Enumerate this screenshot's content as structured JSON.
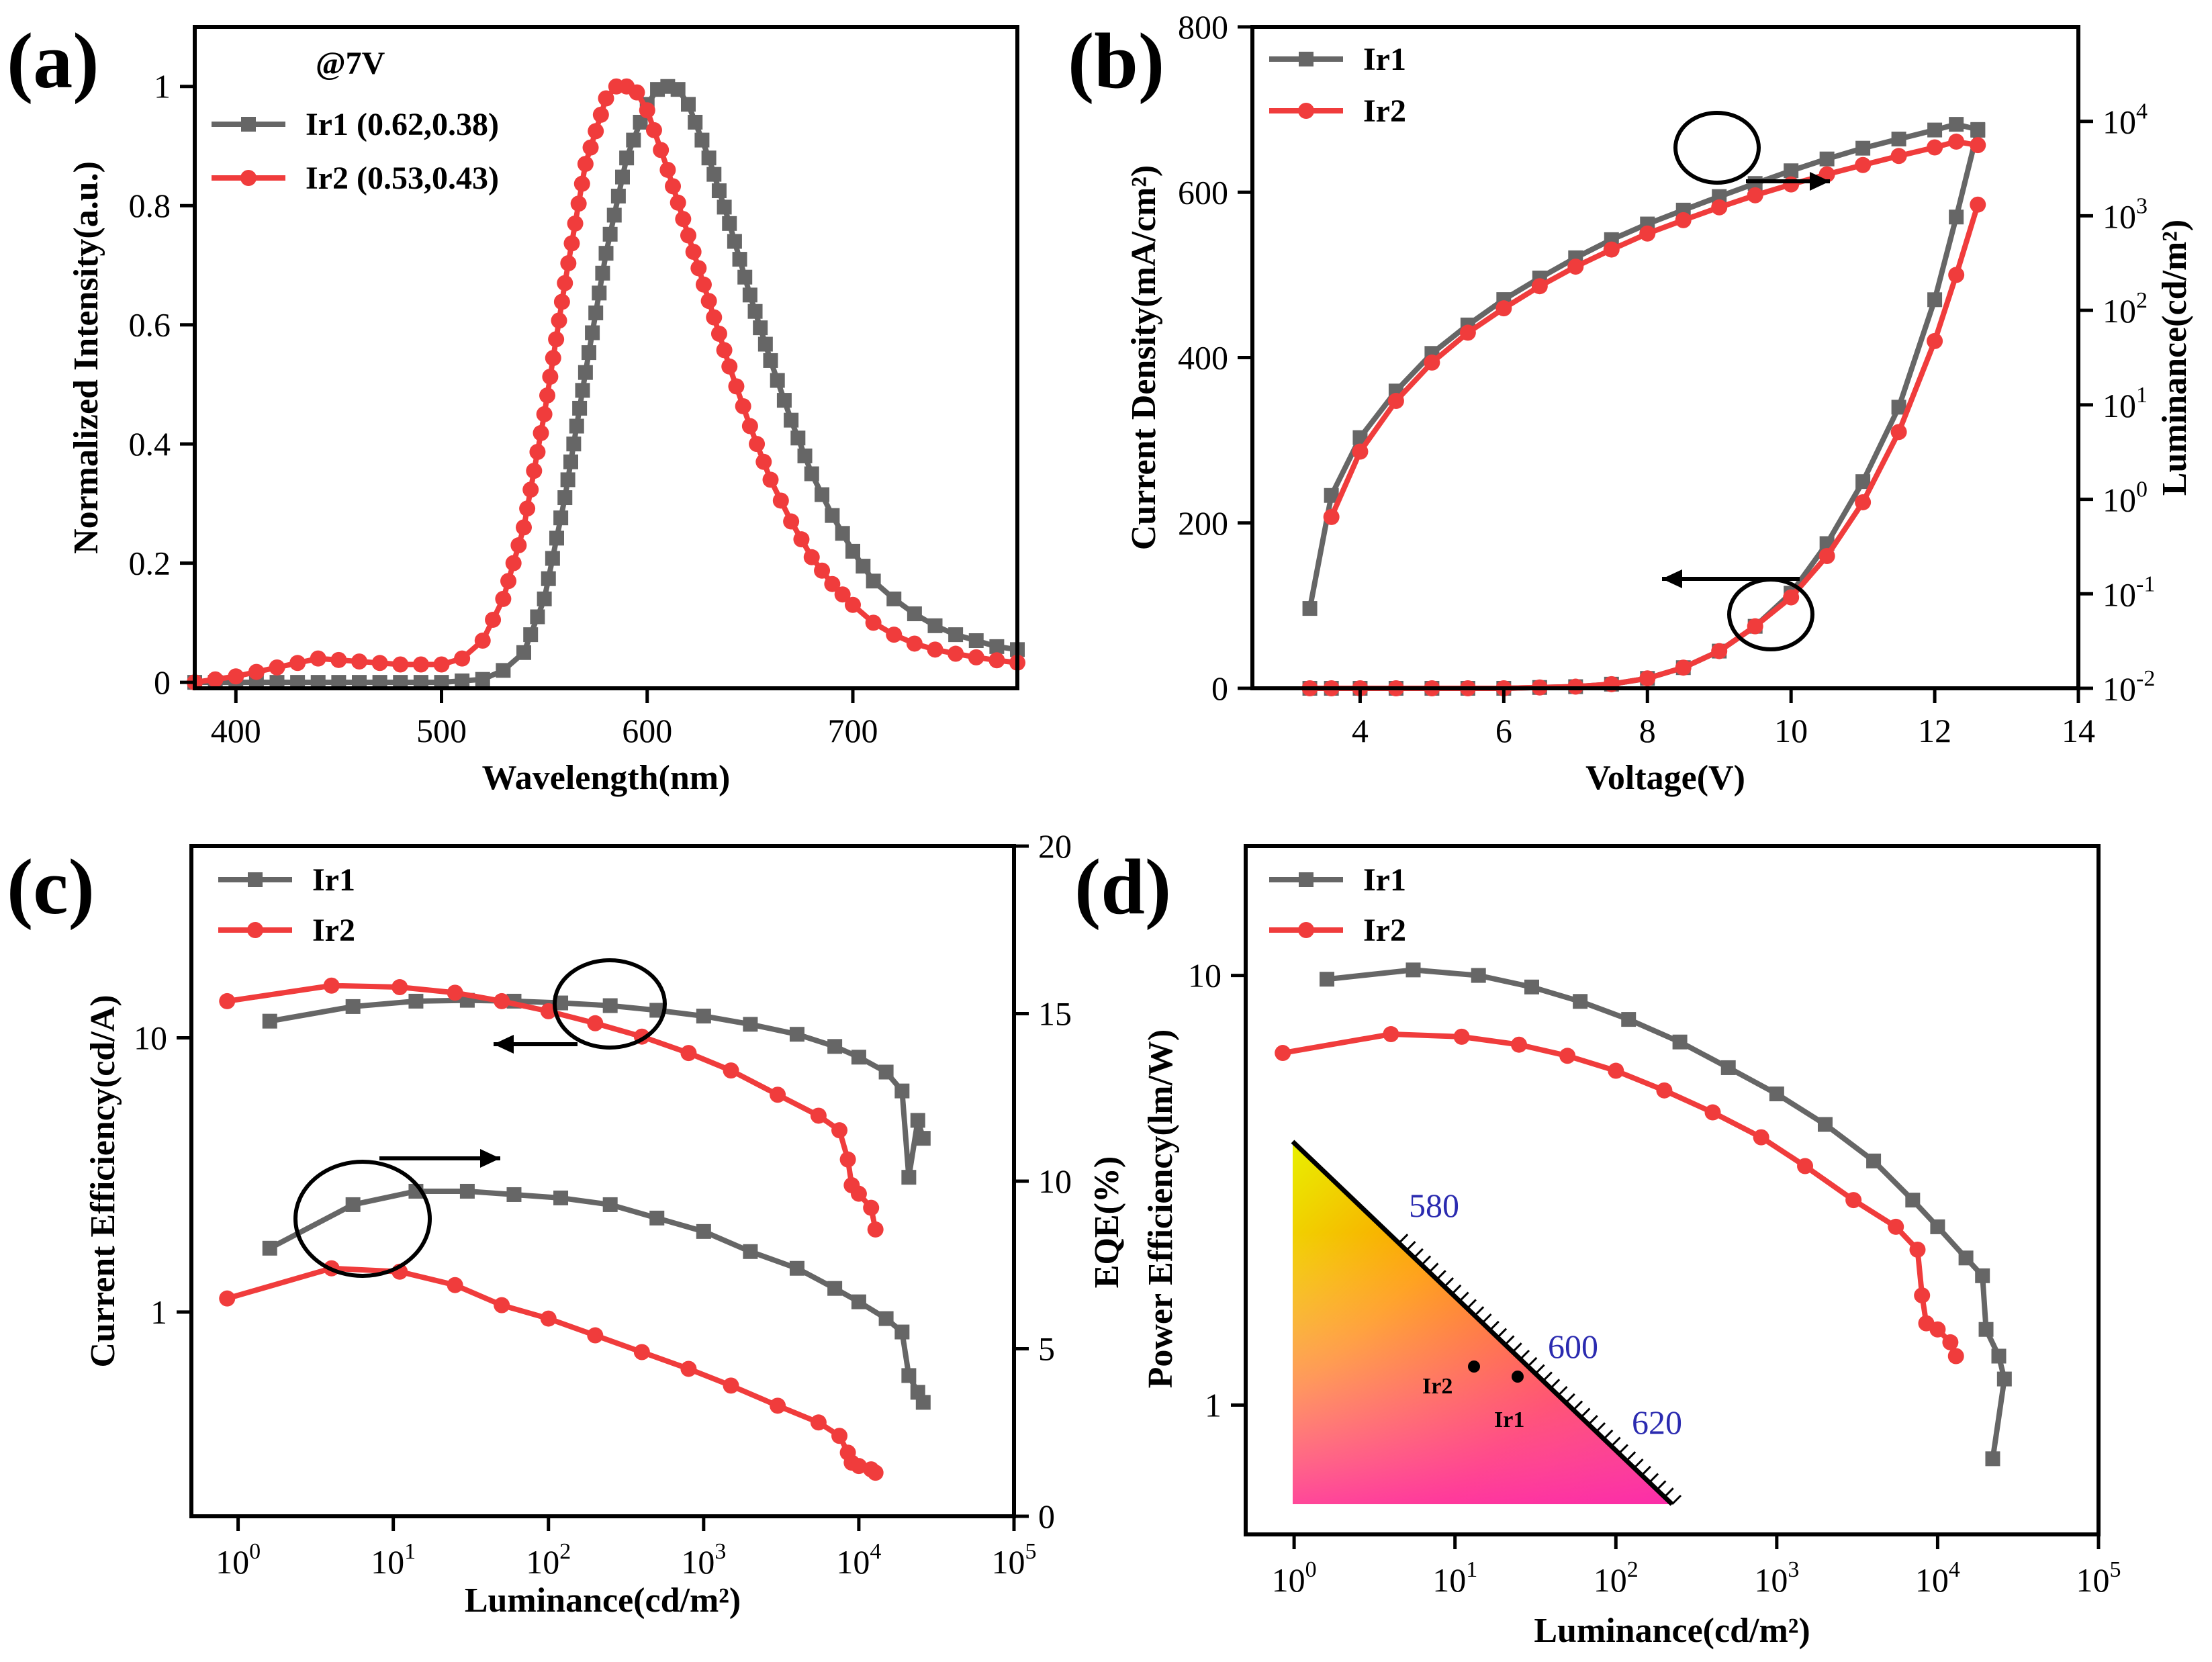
{
  "colors": {
    "Ir1": "#666666",
    "Ir2": "#f03c3c"
  },
  "chart_data": [
    {
      "id": "a",
      "type": "line",
      "label": "(a)",
      "xlabel": "Wavelength(nm)",
      "ylabel": "Normalized Intensity(a.u.)",
      "xlim": [
        380,
        780
      ],
      "ylim": [
        -0.01,
        1.1
      ],
      "xticks": [
        400,
        500,
        600,
        700
      ],
      "yticks": [
        0.0,
        0.2,
        0.4,
        0.6,
        0.8,
        1.0
      ],
      "legend_title": "@7V",
      "series": [
        {
          "name": "Ir1 (0.62,0.38)",
          "color": "Ir1",
          "marker": "square",
          "step": 5,
          "x": [
            380,
            400,
            430,
            460,
            500,
            520,
            530,
            540,
            550,
            560,
            570,
            580,
            590,
            600,
            605,
            610,
            615,
            620,
            630,
            640,
            650,
            660,
            670,
            680,
            690,
            700,
            710,
            720,
            730,
            740,
            750,
            760,
            770,
            780
          ],
          "y": [
            0.0,
            0.0,
            0.0,
            0.0,
            0.0,
            0.005,
            0.02,
            0.05,
            0.14,
            0.31,
            0.52,
            0.72,
            0.88,
            0.97,
            0.995,
            1.0,
            0.995,
            0.97,
            0.88,
            0.77,
            0.65,
            0.54,
            0.44,
            0.35,
            0.28,
            0.22,
            0.17,
            0.14,
            0.115,
            0.095,
            0.08,
            0.07,
            0.06,
            0.055
          ]
        },
        {
          "name": "Ir2 (0.53,0.43)",
          "color": "Ir2",
          "marker": "circle",
          "step": 3,
          "x": [
            380,
            400,
            420,
            440,
            460,
            480,
            500,
            510,
            520,
            530,
            540,
            550,
            560,
            570,
            580,
            585,
            590,
            595,
            600,
            610,
            620,
            630,
            640,
            650,
            660,
            670,
            680,
            690,
            700,
            710,
            720,
            730,
            740,
            750,
            760,
            770,
            780
          ],
          "y": [
            0.0,
            0.01,
            0.025,
            0.04,
            0.035,
            0.03,
            0.03,
            0.04,
            0.07,
            0.14,
            0.26,
            0.45,
            0.67,
            0.87,
            0.98,
            1.0,
            1.0,
            0.99,
            0.96,
            0.86,
            0.75,
            0.64,
            0.53,
            0.43,
            0.34,
            0.27,
            0.21,
            0.165,
            0.13,
            0.1,
            0.08,
            0.065,
            0.055,
            0.048,
            0.042,
            0.037,
            0.033
          ]
        }
      ]
    },
    {
      "id": "b",
      "type": "line",
      "label": "(b)",
      "xlabel": "Voltage(V)",
      "ylabel": "Current Density(mA/cm²)",
      "y2label": "Luminance(cd/m²)",
      "xlim": [
        2.5,
        14
      ],
      "ylim": [
        0,
        800
      ],
      "y2lim": [
        0.01,
        100000
      ],
      "y2scale": "log",
      "xticks": [
        4,
        6,
        8,
        10,
        12,
        14
      ],
      "yticks": [
        0,
        200,
        400,
        600,
        800
      ],
      "y2ticks": [
        {
          "base": "10",
          "exp": "-2",
          "value": 0.01
        },
        {
          "base": "10",
          "exp": "-1",
          "value": 0.1
        },
        {
          "base": "10",
          "exp": "0",
          "value": 1
        },
        {
          "base": "10",
          "exp": "1",
          "value": 10
        },
        {
          "base": "10",
          "exp": "2",
          "value": 100
        },
        {
          "base": "10",
          "exp": "3",
          "value": 1000
        },
        {
          "base": "10",
          "exp": "4",
          "value": 10000
        }
      ],
      "legend": [
        "Ir1",
        "Ir2"
      ],
      "series": [
        {
          "name": "Ir1",
          "color": "Ir1",
          "marker": "square",
          "axis": "y",
          "step": 1,
          "x": [
            3.3,
            3.6,
            4.0,
            4.5,
            5.0,
            5.5,
            6.0,
            6.5,
            7.0,
            7.5,
            8.0,
            8.5,
            9.0,
            9.5,
            10.0,
            10.5,
            11.0,
            11.5,
            12.0,
            12.3,
            12.6
          ],
          "y": [
            0,
            0,
            0,
            0,
            0,
            0,
            0,
            1,
            2,
            5,
            12,
            25,
            45,
            75,
            115,
            175,
            250,
            340,
            470,
            570,
            675
          ]
        },
        {
          "name": "Ir2",
          "color": "Ir2",
          "marker": "circle",
          "axis": "y",
          "step": 1,
          "x": [
            3.3,
            3.6,
            4.0,
            4.5,
            5.0,
            5.5,
            6.0,
            6.5,
            7.0,
            7.5,
            8.0,
            8.5,
            9.0,
            9.5,
            10.0,
            10.5,
            11.0,
            11.5,
            12.0,
            12.3,
            12.6
          ],
          "y": [
            0,
            0,
            0,
            0,
            0,
            0,
            0,
            1,
            2,
            5,
            12,
            25,
            45,
            75,
            110,
            160,
            225,
            310,
            420,
            500,
            585
          ]
        },
        {
          "name": "Ir1",
          "color": "Ir1",
          "marker": "square",
          "axis": "y2",
          "step": 1,
          "x": [
            3.3,
            3.6,
            4.0,
            4.5,
            5.0,
            5.5,
            6.0,
            6.5,
            7.0,
            7.5,
            8.0,
            8.5,
            9.0,
            9.5,
            10.0,
            10.5,
            11.0,
            11.5,
            12.0,
            12.3,
            12.6
          ],
          "y": [
            0.07,
            1.1,
            4.5,
            14,
            35,
            70,
            130,
            220,
            360,
            560,
            820,
            1150,
            1600,
            2200,
            3000,
            4000,
            5200,
            6500,
            8100,
            9300,
            8200
          ]
        },
        {
          "name": "Ir2",
          "color": "Ir2",
          "marker": "circle",
          "axis": "y2",
          "step": 1,
          "x": [
            3.6,
            4.0,
            4.5,
            5.0,
            5.5,
            6.0,
            6.5,
            7.0,
            7.5,
            8.0,
            8.5,
            9.0,
            9.5,
            10.0,
            10.5,
            11.0,
            11.5,
            12.0,
            12.3,
            12.6
          ],
          "y": [
            0.65,
            3.2,
            11,
            28,
            58,
            105,
            180,
            290,
            440,
            650,
            900,
            1230,
            1650,
            2150,
            2750,
            3450,
            4300,
            5300,
            6100,
            5600
          ]
        }
      ]
    },
    {
      "id": "c",
      "type": "line",
      "label": "(c)",
      "xlabel": "Luminance(cd/m²)",
      "ylabel": "Current Efficiency(cd/A)",
      "y2label": "EQE(%)",
      "xlim": [
        0.5,
        100000
      ],
      "xscale": "log",
      "ylim": [
        0.18,
        50
      ],
      "yscale": "log",
      "y2lim": [
        0,
        20
      ],
      "xticks": [
        {
          "base": "10",
          "exp": "0",
          "value": 1
        },
        {
          "base": "10",
          "exp": "1",
          "value": 10
        },
        {
          "base": "10",
          "exp": "2",
          "value": 100
        },
        {
          "base": "10",
          "exp": "3",
          "value": 1000
        },
        {
          "base": "10",
          "exp": "4",
          "value": 10000
        },
        {
          "base": "10",
          "exp": "5",
          "value": 100000
        }
      ],
      "yticks": [
        {
          "text": "1",
          "value": 1
        },
        {
          "text": "10",
          "value": 10
        }
      ],
      "y2ticks": [
        0,
        5,
        10,
        15,
        20
      ],
      "legend": [
        "Ir1",
        "Ir2"
      ],
      "series": [
        {
          "name": "Ir1",
          "color": "Ir1",
          "marker": "square",
          "axis": "y",
          "step": 1,
          "x": [
            1.6,
            5.5,
            14,
            30,
            60,
            120,
            250,
            500,
            1000,
            2000,
            4000,
            7000,
            10000,
            15000,
            19000,
            21000,
            24000,
            26000
          ],
          "y": [
            11.5,
            13.0,
            13.6,
            13.7,
            13.6,
            13.4,
            13.1,
            12.6,
            12.0,
            11.2,
            10.3,
            9.3,
            8.5,
            7.5,
            6.4,
            3.1,
            5.0,
            4.3
          ]
        },
        {
          "name": "Ir2",
          "color": "Ir2",
          "marker": "circle",
          "axis": "y",
          "step": 1,
          "x": [
            0.85,
            4,
            11,
            25,
            50,
            100,
            200,
            400,
            800,
            1500,
            3000,
            5500,
            7500,
            8500,
            9000,
            10000,
            12000,
            12800
          ],
          "y": [
            13.6,
            15.5,
            15.3,
            14.6,
            13.6,
            12.5,
            11.3,
            10.1,
            8.8,
            7.6,
            6.2,
            5.2,
            4.6,
            3.6,
            2.9,
            2.7,
            2.4,
            2.0
          ]
        },
        {
          "name": "Ir1",
          "color": "Ir1",
          "marker": "square",
          "axis": "y2",
          "step": 1,
          "x": [
            1.6,
            5.5,
            14,
            30,
            60,
            120,
            250,
            500,
            1000,
            2000,
            4000,
            7000,
            10000,
            15000,
            19000,
            21000,
            24000,
            26000
          ],
          "y": [
            8.0,
            9.3,
            9.7,
            9.7,
            9.6,
            9.5,
            9.3,
            8.9,
            8.5,
            7.9,
            7.4,
            6.8,
            6.4,
            5.9,
            5.5,
            4.2,
            3.7,
            3.4
          ]
        },
        {
          "name": "Ir2",
          "color": "Ir2",
          "marker": "circle",
          "axis": "y2",
          "step": 1,
          "x": [
            0.85,
            4,
            11,
            25,
            50,
            100,
            200,
            400,
            800,
            1500,
            3000,
            5500,
            7500,
            8500,
            9000,
            10000,
            12000,
            12800
          ],
          "y": [
            6.5,
            7.4,
            7.3,
            6.9,
            6.3,
            5.9,
            5.4,
            4.9,
            4.4,
            3.9,
            3.3,
            2.8,
            2.4,
            1.9,
            1.6,
            1.5,
            1.4,
            1.3
          ]
        }
      ]
    },
    {
      "id": "d",
      "type": "line",
      "label": "(d)",
      "xlabel": "Luminance(cd/m²)",
      "ylabel": "EQE(%)",
      "ylabel2": "Power Efficiency(lm/W)",
      "xlim": [
        0.5,
        100000
      ],
      "xscale": "log",
      "ylim": [
        0.5,
        20
      ],
      "yscale": "log",
      "xticks": [
        {
          "base": "10",
          "exp": "0",
          "value": 1
        },
        {
          "base": "10",
          "exp": "1",
          "value": 10
        },
        {
          "base": "10",
          "exp": "2",
          "value": 100
        },
        {
          "base": "10",
          "exp": "3",
          "value": 1000
        },
        {
          "base": "10",
          "exp": "4",
          "value": 10000
        },
        {
          "base": "10",
          "exp": "5",
          "value": 100000
        }
      ],
      "yticks": [
        {
          "text": "1",
          "value": 1
        },
        {
          "text": "10",
          "value": 10
        }
      ],
      "legend": [
        "Ir1",
        "Ir2"
      ],
      "series": [
        {
          "name": "Ir1",
          "color": "Ir1",
          "marker": "square",
          "axis": "y",
          "step": 1,
          "x": [
            1.6,
            5.5,
            14,
            30,
            60,
            120,
            250,
            500,
            1000,
            2000,
            4000,
            7000,
            10000,
            15000,
            19000,
            20000,
            24000,
            26000,
            22000
          ],
          "y": [
            9.8,
            10.3,
            10.0,
            9.4,
            8.7,
            7.9,
            7.0,
            6.1,
            5.3,
            4.5,
            3.7,
            3.0,
            2.6,
            2.2,
            2.0,
            1.5,
            1.3,
            1.15,
            0.75
          ]
        },
        {
          "name": "Ir2",
          "color": "Ir2",
          "marker": "circle",
          "axis": "y",
          "step": 1,
          "x": [
            0.85,
            4,
            11,
            25,
            50,
            100,
            200,
            400,
            800,
            1500,
            3000,
            5500,
            7500,
            8000,
            8500,
            10000,
            12000,
            13000
          ],
          "y": [
            6.6,
            7.3,
            7.2,
            6.9,
            6.5,
            6.0,
            5.4,
            4.8,
            4.2,
            3.6,
            3.0,
            2.6,
            2.3,
            1.8,
            1.55,
            1.5,
            1.4,
            1.3
          ]
        }
      ],
      "inset": {
        "wavelength_ticks": [
          "580",
          "600",
          "620"
        ],
        "points": [
          {
            "label": "Ir2"
          },
          {
            "label": "Ir1"
          }
        ]
      }
    }
  ]
}
